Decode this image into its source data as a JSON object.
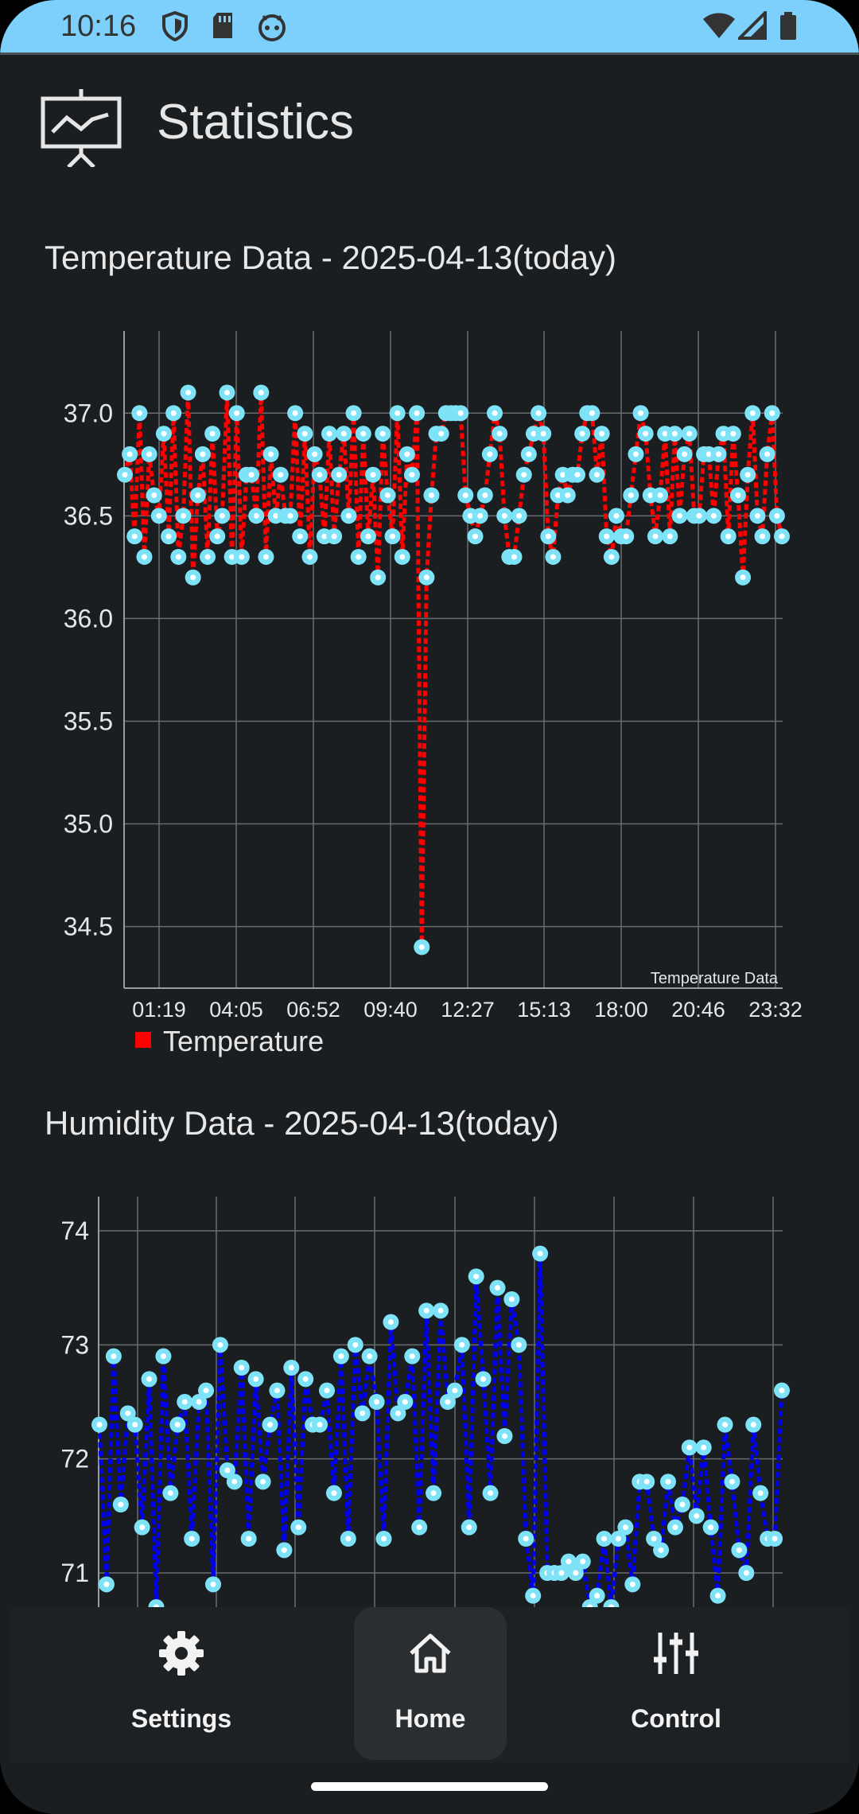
{
  "status_bar": {
    "time": "10:16",
    "icons": [
      "shield-icon",
      "sd-card-icon",
      "android-face-icon",
      "wifi-icon",
      "signal-icon",
      "battery-icon"
    ]
  },
  "app_bar": {
    "title": "Statistics",
    "icon": "presentation-chart-icon"
  },
  "temperature_chart": {
    "title": "Temperature Data - 2025-04-13(today)",
    "description": "Temperature Data",
    "legend": "Temperature"
  },
  "humidity_chart": {
    "title": "Humidity Data - 2025-04-13(today)"
  },
  "chart_data": [
    {
      "type": "line",
      "title": "Temperature Data - 2025-04-13(today)",
      "xlabel": "",
      "ylabel": "",
      "x_tick_labels": [
        "01:19",
        "04:05",
        "06:52",
        "09:40",
        "12:27",
        "15:13",
        "18:00",
        "20:46",
        "23:32"
      ],
      "y_tick_labels": [
        "37.0",
        "36.5",
        "36.0",
        "35.5",
        "35.0",
        "34.5"
      ],
      "ylim": [
        34.2,
        37.4
      ],
      "legend": "bottom-left",
      "grid": true,
      "series_color": "#ff0000",
      "marker_color": "#7fe3f7",
      "series": [
        {
          "name": "Temperature",
          "values": [
            36.7,
            36.8,
            36.4,
            37.0,
            36.3,
            36.8,
            36.6,
            36.5,
            36.9,
            36.4,
            37.0,
            36.3,
            36.5,
            37.1,
            36.2,
            36.6,
            36.8,
            36.3,
            36.9,
            36.4,
            36.5,
            37.1,
            36.3,
            37.0,
            36.3,
            36.7,
            36.7,
            36.5,
            37.1,
            36.3,
            36.8,
            36.5,
            36.7,
            36.5,
            36.5,
            37.0,
            36.4,
            36.9,
            36.3,
            36.8,
            36.7,
            36.4,
            36.9,
            36.4,
            36.7,
            36.9,
            36.5,
            37.0,
            36.3,
            36.9,
            36.4,
            36.7,
            36.2,
            36.9,
            36.6,
            36.4,
            37.0,
            36.3,
            36.8,
            36.7,
            37.0,
            34.4,
            36.2,
            36.6,
            36.9,
            36.9,
            37.0,
            37.0,
            37.0,
            37.0,
            36.6,
            36.5,
            36.4,
            36.5,
            36.6,
            36.8,
            37.0,
            36.9,
            36.5,
            36.3,
            36.3,
            36.5,
            36.7,
            36.8,
            36.9,
            37.0,
            36.9,
            36.4,
            36.3,
            36.6,
            36.7,
            36.6,
            36.7,
            36.7,
            36.9,
            37.0,
            37.0,
            36.7,
            36.9,
            36.4,
            36.3,
            36.5,
            36.4,
            36.4,
            36.6,
            36.8,
            37.0,
            36.9,
            36.6,
            36.4,
            36.6,
            36.9,
            36.4,
            36.9,
            36.5,
            36.8,
            36.9,
            36.5,
            36.5,
            36.8,
            36.8,
            36.5,
            36.8,
            36.9,
            36.4,
            36.9,
            36.6,
            36.2,
            36.7,
            37.0,
            36.5,
            36.4,
            36.8,
            37.0,
            36.5,
            36.4
          ]
        }
      ]
    },
    {
      "type": "line",
      "title": "Humidity Data - 2025-04-13(today)",
      "xlabel": "",
      "ylabel": "",
      "y_tick_labels": [
        "74",
        "73",
        "72",
        "71"
      ],
      "ylim": [
        70.7,
        74.3
      ],
      "grid": true,
      "series_color": "#0000ee",
      "marker_color": "#7fe3f7",
      "series": [
        {
          "name": "",
          "values": [
            72.3,
            70.9,
            72.9,
            71.6,
            72.4,
            72.3,
            71.4,
            72.7,
            70.7,
            72.9,
            71.7,
            72.3,
            72.5,
            71.3,
            72.5,
            72.6,
            70.9,
            73.0,
            71.9,
            71.8,
            72.8,
            71.3,
            72.7,
            71.8,
            72.3,
            72.6,
            71.2,
            72.8,
            71.4,
            72.7,
            72.3,
            72.3,
            72.6,
            71.7,
            72.9,
            71.3,
            73.0,
            72.4,
            72.9,
            72.5,
            71.3,
            73.2,
            72.4,
            72.5,
            72.9,
            71.4,
            73.3,
            71.7,
            73.3,
            72.5,
            72.6,
            73.0,
            71.4,
            73.6,
            72.7,
            71.7,
            73.5,
            72.2,
            73.4,
            73.0,
            71.3,
            70.8,
            73.8,
            71.0,
            71.0,
            71.0,
            71.1,
            71.0,
            71.1,
            70.7,
            70.8,
            71.3,
            70.7,
            71.3,
            71.4,
            70.9,
            71.8,
            71.8,
            71.3,
            71.2,
            71.8,
            71.4,
            71.6,
            72.1,
            71.5,
            72.1,
            71.4,
            70.8,
            72.3,
            71.8,
            71.2,
            71.0,
            72.3,
            71.7,
            71.3,
            71.3,
            72.6
          ]
        }
      ]
    }
  ],
  "bottom_nav": {
    "items": [
      {
        "label": "Settings",
        "icon": "gear-icon"
      },
      {
        "label": "Home",
        "icon": "home-icon"
      },
      {
        "label": "Control",
        "icon": "sliders-icon"
      }
    ]
  }
}
